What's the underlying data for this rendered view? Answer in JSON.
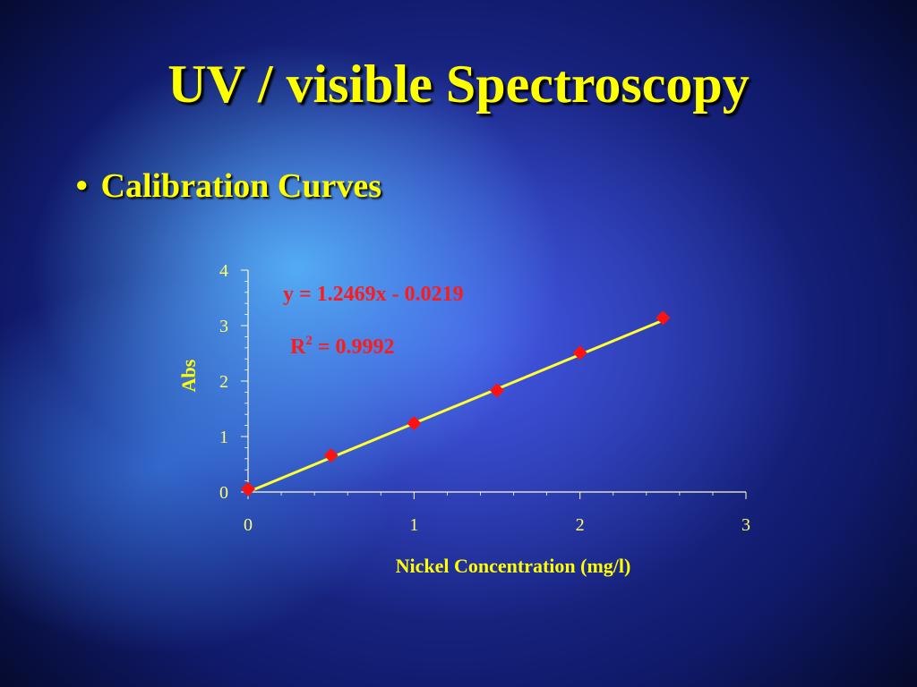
{
  "slide": {
    "title": "UV / visible Spectroscopy",
    "bullet": "Calibration Curves"
  },
  "colors": {
    "title": "#ffff00",
    "axis": "#ffffcc",
    "trendline": "#ffff33",
    "points": "#ff1111",
    "annotation": "#ff1a1a"
  },
  "chart_data": {
    "type": "scatter",
    "title": "",
    "xlabel": "Nickel Concentration (mg/l)",
    "ylabel": "Abs",
    "xlim": [
      0,
      3
    ],
    "ylim": [
      0,
      4
    ],
    "xticks": [
      0,
      1,
      2,
      3
    ],
    "yticks": [
      0,
      1,
      2,
      3,
      4
    ],
    "grid": false,
    "series": [
      {
        "x": [
          0,
          0.5,
          1.0,
          1.5,
          2.0,
          2.5
        ],
        "y": [
          0.05,
          0.66,
          1.24,
          1.83,
          2.51,
          3.14
        ]
      }
    ],
    "trendline": {
      "slope": 1.2469,
      "intercept": -0.0219,
      "x_range": [
        0,
        2.5
      ]
    },
    "annotations": {
      "equation": "y = 1.2469x - 0.0219",
      "r_prefix": "R",
      "r_sup": "2",
      "r_value": " = 0.9992"
    }
  }
}
